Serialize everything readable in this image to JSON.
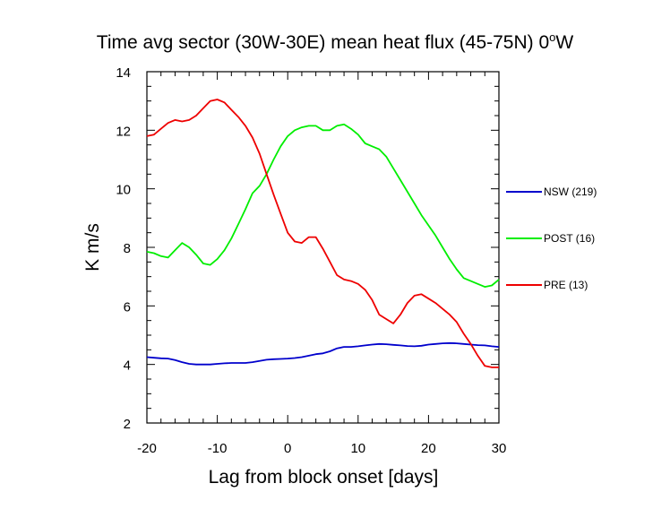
{
  "chart_data": {
    "type": "line",
    "title": "Time avg sector (30W-30E) mean heat flux (45-75N) 0",
    "title_superscript": "o",
    "title_suffix": "W",
    "xlabel": "Lag from block onset [days]",
    "ylabel": "K m/s",
    "xlim": [
      -20,
      30
    ],
    "ylim": [
      2,
      14
    ],
    "xticks": [
      -20,
      -10,
      0,
      10,
      20,
      30
    ],
    "yticks": [
      2,
      4,
      6,
      8,
      10,
      12,
      14
    ],
    "grid": false,
    "legend_position": "right",
    "x": [
      -20,
      -19,
      -18,
      -17,
      -16,
      -15,
      -14,
      -13,
      -12,
      -11,
      -10,
      -9,
      -8,
      -7,
      -6,
      -5,
      -4,
      -3,
      -2,
      -1,
      0,
      1,
      2,
      3,
      4,
      5,
      6,
      7,
      8,
      9,
      10,
      11,
      12,
      13,
      14,
      15,
      16,
      17,
      18,
      19,
      20,
      21,
      22,
      23,
      24,
      25,
      26,
      27,
      28,
      29,
      30
    ],
    "series": [
      {
        "name": "NSW (219)",
        "color": "#0000cc",
        "values": [
          4.25,
          4.23,
          4.21,
          4.2,
          4.15,
          4.08,
          4.02,
          4.0,
          4.0,
          4.0,
          4.02,
          4.04,
          4.05,
          4.05,
          4.05,
          4.08,
          4.12,
          4.16,
          4.18,
          4.19,
          4.2,
          4.22,
          4.25,
          4.3,
          4.35,
          4.38,
          4.45,
          4.55,
          4.6,
          4.6,
          4.62,
          4.65,
          4.68,
          4.7,
          4.69,
          4.67,
          4.65,
          4.63,
          4.62,
          4.64,
          4.68,
          4.7,
          4.72,
          4.73,
          4.72,
          4.7,
          4.68,
          4.66,
          4.65,
          4.62,
          4.6
        ]
      },
      {
        "name": "POST (16)",
        "color": "#00ee00",
        "values": [
          7.85,
          7.8,
          7.7,
          7.65,
          7.9,
          8.15,
          8.0,
          7.75,
          7.45,
          7.4,
          7.6,
          7.9,
          8.3,
          8.8,
          9.3,
          9.85,
          10.1,
          10.5,
          11.0,
          11.45,
          11.8,
          12.0,
          12.1,
          12.15,
          12.15,
          12.0,
          12.0,
          12.15,
          12.2,
          12.05,
          11.85,
          11.55,
          11.45,
          11.35,
          11.1,
          10.7,
          10.3,
          9.9,
          9.5,
          9.1,
          8.75,
          8.4,
          8.0,
          7.6,
          7.25,
          6.95,
          6.85,
          6.75,
          6.65,
          6.7,
          6.9
        ]
      },
      {
        "name": "PRE (13)",
        "color": "#ee0000",
        "values": [
          11.8,
          11.85,
          12.05,
          12.25,
          12.35,
          12.3,
          12.35,
          12.5,
          12.75,
          13.0,
          13.05,
          12.95,
          12.7,
          12.45,
          12.15,
          11.75,
          11.2,
          10.5,
          9.8,
          9.15,
          8.5,
          8.2,
          8.15,
          8.35,
          8.35,
          7.95,
          7.5,
          7.05,
          6.9,
          6.85,
          6.75,
          6.55,
          6.2,
          5.7,
          5.55,
          5.4,
          5.7,
          6.1,
          6.35,
          6.4,
          6.25,
          6.1,
          5.9,
          5.7,
          5.45,
          5.05,
          4.7,
          4.3,
          3.95,
          3.9,
          3.9
        ]
      }
    ]
  }
}
